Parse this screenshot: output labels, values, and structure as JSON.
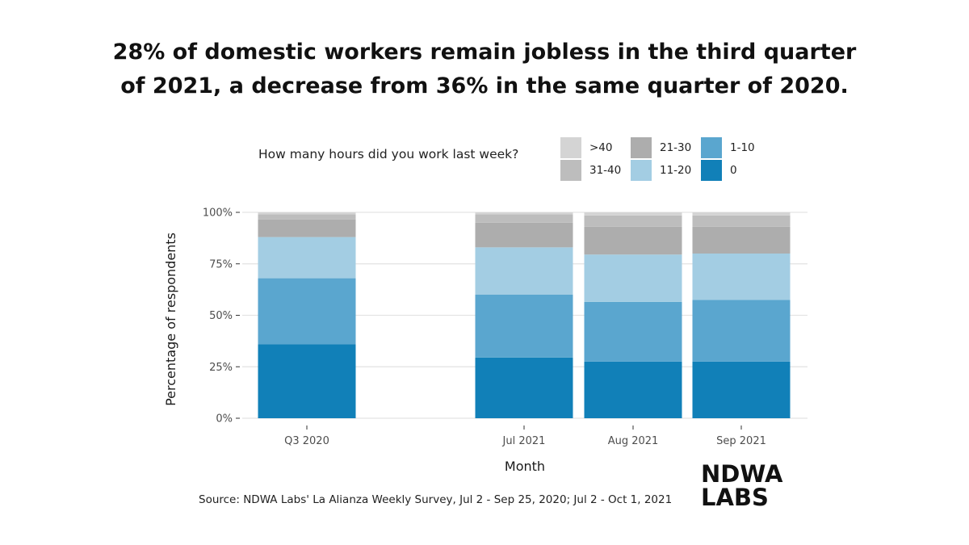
{
  "title_lines": [
    "28% of domestic workers remain jobless in the third quarter",
    "of 2021, a decrease from 36% in the same quarter of 2020."
  ],
  "legend": {
    "title": "How many hours did you work last week?",
    "items": [
      {
        "label": ">40",
        "color": "#d4d4d4"
      },
      {
        "label": "31-40",
        "color": "#bdbdbd"
      },
      {
        "label": "21-30",
        "color": "#adadad"
      },
      {
        "label": "11-20",
        "color": "#a3cde3"
      },
      {
        "label": "1-10",
        "color": "#5aa6cf"
      },
      {
        "label": "0",
        "color": "#1180b8"
      }
    ]
  },
  "source": "Source: NDWA Labs' La Alianza Weekly Survey, Jul 2 - Sep 25, 2020; Jul 2 - Oct 1, 2021",
  "logo": {
    "line1": "NDWA",
    "line2": "LABS"
  },
  "chart_data": {
    "type": "bar",
    "stacked": true,
    "categories": [
      "Q3 2020",
      "Jul 2021",
      "Aug 2021",
      "Sep 2021"
    ],
    "xlabel": "Month",
    "ylabel": "Percentage of respondents",
    "ylim": [
      0,
      100
    ],
    "yticks": [
      0,
      25,
      50,
      75,
      100
    ],
    "ytick_labels": [
      "0%",
      "25%",
      "50%",
      "75%",
      "100%"
    ],
    "grid": true,
    "legend_position": "top",
    "series": [
      {
        "name": "0",
        "color": "#1180b8",
        "values": [
          36,
          29.5,
          27.5,
          27.5
        ]
      },
      {
        "name": "1-10",
        "color": "#5aa6cf",
        "values": [
          32,
          30.5,
          29,
          30
        ]
      },
      {
        "name": "11-20",
        "color": "#a3cde3",
        "values": [
          20,
          23,
          23,
          22.5
        ]
      },
      {
        "name": "21-30",
        "color": "#adadad",
        "values": [
          8.5,
          12,
          13.5,
          13
        ]
      },
      {
        "name": "31-40",
        "color": "#bdbdbd",
        "values": [
          2.5,
          4,
          5.5,
          5.5
        ]
      },
      {
        "name": ">40",
        "color": "#d4d4d4",
        "values": [
          1,
          1,
          1.5,
          1.5
        ]
      }
    ]
  }
}
